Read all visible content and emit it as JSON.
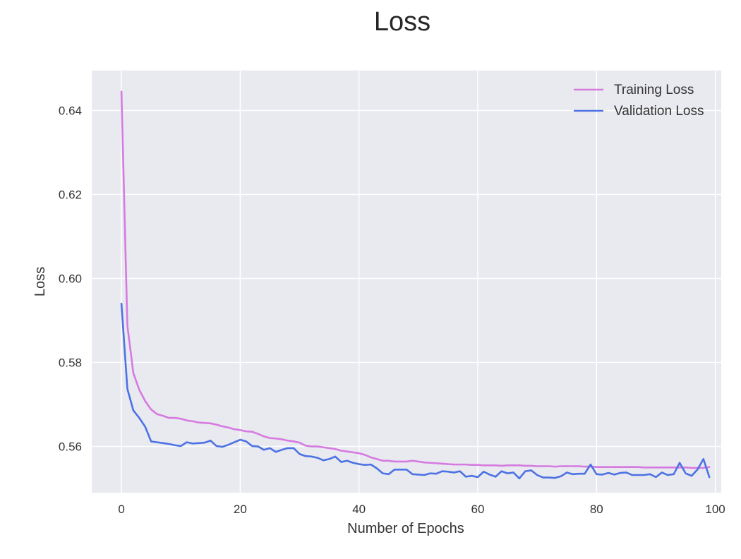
{
  "chart_data": {
    "type": "line",
    "title": "Loss",
    "xlabel": "Number of Epochs",
    "ylabel": "Loss",
    "xlim": [
      -5,
      101
    ],
    "ylim": [
      0.549,
      0.6495
    ],
    "xticks": [
      0,
      20,
      40,
      60,
      80,
      100
    ],
    "yticks": [
      0.56,
      0.58,
      0.6,
      0.62,
      0.64
    ],
    "xtick_labels": [
      "0",
      "20",
      "40",
      "60",
      "80",
      "100"
    ],
    "ytick_labels": [
      "0.56",
      "0.58",
      "0.60",
      "0.62",
      "0.64"
    ],
    "grid": true,
    "legend_position": "upper right",
    "background_color": "#e9e9f0",
    "series": [
      {
        "name": "Training Loss",
        "color": "#d57be0",
        "x": [
          0,
          1,
          2,
          3,
          4,
          5,
          6,
          7,
          8,
          9,
          10,
          11,
          12,
          13,
          14,
          15,
          16,
          17,
          18,
          19,
          20,
          21,
          22,
          23,
          24,
          25,
          26,
          27,
          28,
          29,
          30,
          31,
          32,
          33,
          34,
          35,
          36,
          37,
          38,
          39,
          40,
          41,
          42,
          43,
          44,
          45,
          46,
          47,
          48,
          49,
          50,
          51,
          52,
          53,
          54,
          55,
          56,
          57,
          58,
          59,
          60,
          61,
          62,
          63,
          64,
          65,
          66,
          67,
          68,
          69,
          70,
          71,
          72,
          73,
          74,
          75,
          76,
          77,
          78,
          79,
          80,
          81,
          82,
          83,
          84,
          85,
          86,
          87,
          88,
          89,
          90,
          91,
          92,
          93,
          94,
          95,
          96,
          97,
          98,
          99
        ],
        "values": [
          0.6445,
          0.5888,
          0.5775,
          0.5735,
          0.5708,
          0.5688,
          0.5677,
          0.5673,
          0.5668,
          0.5668,
          0.5666,
          0.5662,
          0.566,
          0.5657,
          0.5656,
          0.5655,
          0.5652,
          0.5648,
          0.5645,
          0.5641,
          0.5639,
          0.5636,
          0.5635,
          0.563,
          0.5624,
          0.562,
          0.5619,
          0.5617,
          0.5614,
          0.5612,
          0.5609,
          0.5602,
          0.56,
          0.56,
          0.5598,
          0.5596,
          0.5594,
          0.559,
          0.5588,
          0.5586,
          0.5584,
          0.558,
          0.5574,
          0.557,
          0.5566,
          0.5566,
          0.5564,
          0.5564,
          0.5564,
          0.5566,
          0.5564,
          0.5562,
          0.5561,
          0.556,
          0.5559,
          0.5558,
          0.5557,
          0.5557,
          0.5557,
          0.5556,
          0.5556,
          0.5555,
          0.5555,
          0.5555,
          0.5554,
          0.5555,
          0.5555,
          0.5555,
          0.5554,
          0.5554,
          0.5553,
          0.5553,
          0.5553,
          0.5552,
          0.5553,
          0.5553,
          0.5553,
          0.5553,
          0.5552,
          0.5552,
          0.5551,
          0.5551,
          0.5551,
          0.5551,
          0.5551,
          0.5551,
          0.5551,
          0.5551,
          0.555,
          0.555,
          0.555,
          0.555,
          0.555,
          0.555,
          0.555,
          0.555,
          0.5549,
          0.5549,
          0.5549,
          0.5551
        ]
      },
      {
        "name": "Validation Loss",
        "color": "#4c72e3",
        "x": [
          0,
          1,
          2,
          3,
          4,
          5,
          6,
          7,
          8,
          9,
          10,
          11,
          12,
          13,
          14,
          15,
          16,
          17,
          18,
          19,
          20,
          21,
          22,
          23,
          24,
          25,
          26,
          27,
          28,
          29,
          30,
          31,
          32,
          33,
          34,
          35,
          36,
          37,
          38,
          39,
          40,
          41,
          42,
          43,
          44,
          45,
          46,
          47,
          48,
          49,
          50,
          51,
          52,
          53,
          54,
          55,
          56,
          57,
          58,
          59,
          60,
          61,
          62,
          63,
          64,
          65,
          66,
          67,
          68,
          69,
          70,
          71,
          72,
          73,
          74,
          75,
          76,
          77,
          78,
          79,
          80,
          81,
          82,
          83,
          84,
          85,
          86,
          87,
          88,
          89,
          90,
          91,
          92,
          93,
          94,
          95,
          96,
          97,
          98,
          99
        ],
        "values": [
          0.594,
          0.5737,
          0.5686,
          0.5668,
          0.5647,
          0.5612,
          0.561,
          0.5608,
          0.5606,
          0.5603,
          0.5601,
          0.561,
          0.5607,
          0.5608,
          0.5609,
          0.5614,
          0.5601,
          0.5599,
          0.5604,
          0.561,
          0.5616,
          0.5612,
          0.5601,
          0.56,
          0.5592,
          0.5596,
          0.5587,
          0.5592,
          0.5596,
          0.5596,
          0.5582,
          0.5577,
          0.5576,
          0.5573,
          0.5567,
          0.557,
          0.5576,
          0.5563,
          0.5566,
          0.5561,
          0.5558,
          0.5556,
          0.5557,
          0.5548,
          0.5536,
          0.5534,
          0.5545,
          0.5545,
          0.5545,
          0.5534,
          0.5533,
          0.5532,
          0.5536,
          0.5535,
          0.5541,
          0.554,
          0.5538,
          0.5541,
          0.5528,
          0.553,
          0.5527,
          0.554,
          0.5533,
          0.5528,
          0.5541,
          0.5536,
          0.5538,
          0.5524,
          0.5541,
          0.5543,
          0.5532,
          0.5526,
          0.5526,
          0.5525,
          0.5529,
          0.5538,
          0.5534,
          0.5535,
          0.5535,
          0.5557,
          0.5534,
          0.5533,
          0.5537,
          0.5533,
          0.5537,
          0.5538,
          0.5532,
          0.5532,
          0.5532,
          0.5534,
          0.5527,
          0.5538,
          0.5532,
          0.5534,
          0.5561,
          0.5536,
          0.553,
          0.5545,
          0.557,
          0.5527
        ]
      }
    ]
  }
}
